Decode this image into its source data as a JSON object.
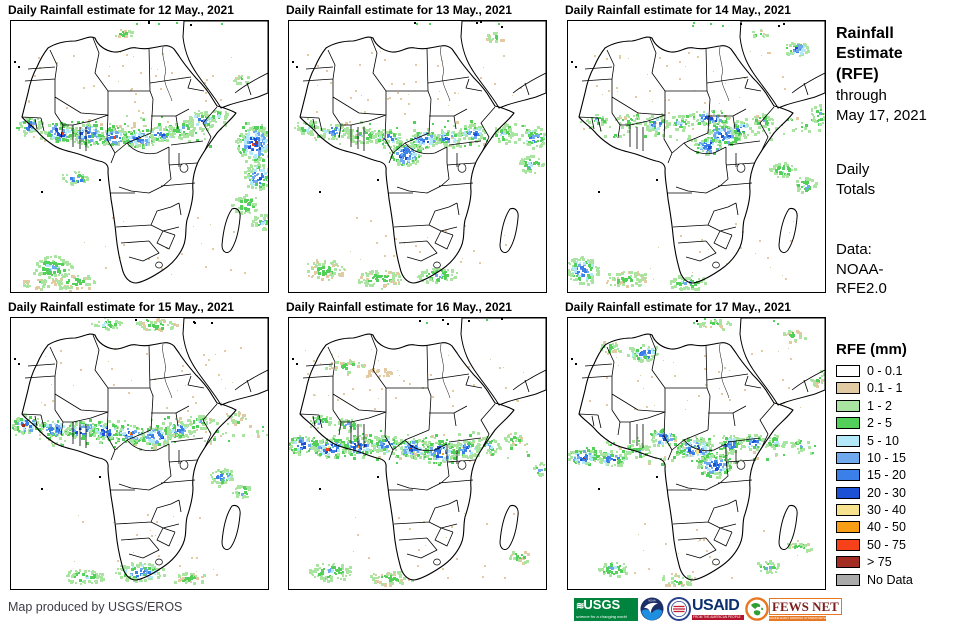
{
  "panels": [
    {
      "title": "Daily Rainfall estimate for 12 May., 2021"
    },
    {
      "title": "Daily Rainfall estimate for 13 May., 2021"
    },
    {
      "title": "Daily Rainfall estimate for 14 May., 2021"
    },
    {
      "title": "Daily Rainfall estimate for 15 May., 2021"
    },
    {
      "title": "Daily Rainfall estimate for 16 May., 2021"
    },
    {
      "title": "Daily Rainfall estimate for 17 May., 2021"
    }
  ],
  "sidebar": {
    "title": "Rainfall\nEstimate\n(RFE)",
    "through": "through\nMay 17, 2021",
    "period": "Daily\nTotals",
    "source": "Data:\nNOAA-\nRFE2.0"
  },
  "legend": {
    "title": "RFE (mm)",
    "items": [
      {
        "label": "0 - 0.1",
        "color": "#FFFFFF"
      },
      {
        "label": "0.1 - 1",
        "color": "#E2CBA3"
      },
      {
        "label": "1 - 2",
        "color": "#A9E4A0"
      },
      {
        "label": "2 - 5",
        "color": "#52D05A"
      },
      {
        "label": "5 - 10",
        "color": "#B2E8F7"
      },
      {
        "label": "10 - 15",
        "color": "#71A9EE"
      },
      {
        "label": "15 - 20",
        "color": "#3B7FE8"
      },
      {
        "label": "20 - 30",
        "color": "#1D51D5"
      },
      {
        "label": "30 - 40",
        "color": "#F7E38E"
      },
      {
        "label": "40 - 50",
        "color": "#F79E16"
      },
      {
        "label": "50 - 75",
        "color": "#F6411A"
      },
      {
        "label": "> 75",
        "color": "#A32C23"
      },
      {
        "label": "No Data",
        "color": "#AAAAAA"
      }
    ]
  },
  "footer": {
    "credit": "Map produced by USGS/EROS",
    "logos": {
      "usgs": {
        "label": "USGS",
        "tagline": "science for a changing world"
      },
      "noaa": {
        "label": "NOAA"
      },
      "usaid": {
        "label": "USAID",
        "tagline": "FROM THE AMERICAN PEOPLE"
      },
      "fewsnet": {
        "label": "FEWS NET",
        "tagline": "FAMINE EARLY WARNING SYSTEMS NETWORK"
      }
    }
  }
}
